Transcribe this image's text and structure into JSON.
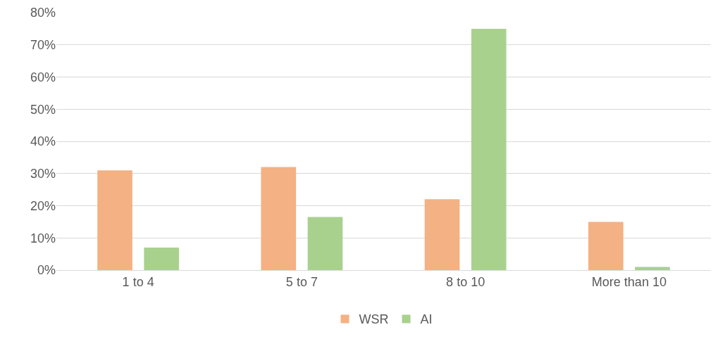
{
  "chart_data": {
    "type": "bar",
    "categories": [
      "1 to 4",
      "5 to 7",
      "8 to 10",
      "More than 10"
    ],
    "series": [
      {
        "name": "WSR",
        "color": "#f4b183",
        "values": [
          31,
          32,
          22,
          15
        ]
      },
      {
        "name": "AI",
        "color": "#a9d18e",
        "values": [
          7,
          16.5,
          75,
          1
        ]
      }
    ],
    "ylim": [
      0,
      80
    ],
    "yticks": [
      {
        "value": 0,
        "label": "0%"
      },
      {
        "value": 10,
        "label": "10%"
      },
      {
        "value": 20,
        "label": "20%"
      },
      {
        "value": 30,
        "label": "30%"
      },
      {
        "value": 40,
        "label": "40%"
      },
      {
        "value": 50,
        "label": "50%"
      },
      {
        "value": 60,
        "label": "60%"
      },
      {
        "value": 70,
        "label": "70%"
      },
      {
        "value": 80,
        "label": "80%"
      }
    ],
    "grid": "y",
    "legend": "bottom"
  }
}
